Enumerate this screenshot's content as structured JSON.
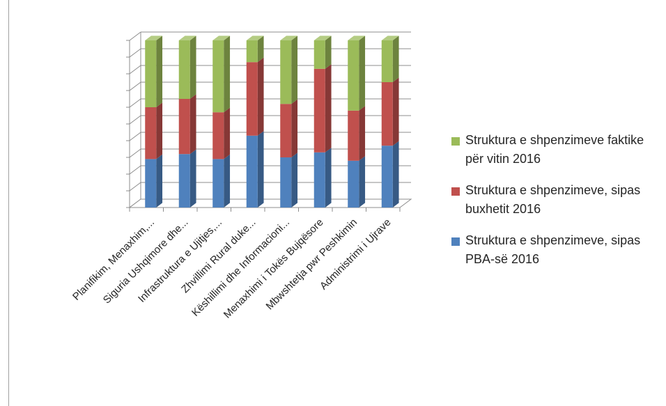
{
  "chart_data": {
    "type": "bar",
    "stacked": true,
    "percent_stacked": true,
    "three_d": true,
    "categories": [
      "Planifikim, Menaxhim,...",
      "Siguria Ushqimore dhe...",
      "Infrastruktura e Ujitjes,...",
      "Zhvillimi Rural duke...",
      "Këshillimi dhe Informacioni...",
      "Menaxhimi i Tokës Bujqësore",
      "Mbwshtetja pwr Peshkimin",
      "Administrimi i Ujrave"
    ],
    "series": [
      {
        "name": "Struktura e shpenzimeve, sipas PBA-së 2016",
        "color": "#4f81bd",
        "values": [
          29,
          32,
          29,
          43,
          30,
          33,
          28,
          37
        ]
      },
      {
        "name": "Struktura e shpenzimeve, sipas buxhetit 2016",
        "color": "#c0504d",
        "values": [
          31,
          33,
          28,
          44,
          32,
          50,
          30,
          38
        ]
      },
      {
        "name": "Struktura e shpenzimeve faktike për vitin 2016",
        "color": "#9bbb59",
        "values": [
          40,
          35,
          43,
          13,
          38,
          17,
          42,
          25
        ]
      }
    ],
    "ylim": [
      0,
      100
    ],
    "y_tick_count": 10,
    "grid": true,
    "legend_position": "right"
  },
  "legend": [
    {
      "text": "Struktura e shpenzimeve faktike për vitin 2016",
      "color": "#9bbb59",
      "icon": "green-square"
    },
    {
      "text": "Struktura e shpenzimeve, sipas buxhetit 2016",
      "color": "#c0504d",
      "icon": "red-square"
    },
    {
      "text": "Struktura e shpenzimeve, sipas PBA-së 2016",
      "color": "#4f81bd",
      "icon": "blue-square"
    }
  ]
}
